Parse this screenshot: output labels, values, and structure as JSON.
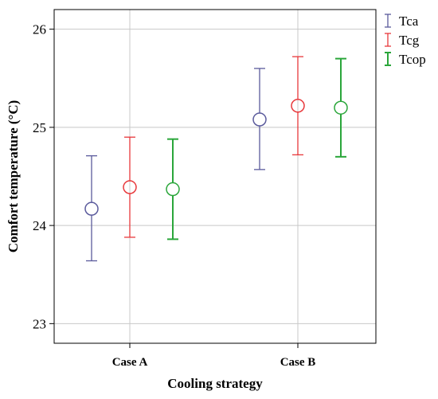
{
  "chart_data": {
    "type": "errorbar",
    "xlabel": "Cooling strategy",
    "ylabel": "Comfort temperature (°C)",
    "ylim": [
      22.8,
      26.2
    ],
    "yticks": [
      23,
      24,
      25,
      26
    ],
    "categories": [
      "Case A",
      "Case B"
    ],
    "grid": true,
    "legend_position": "top-right",
    "series": [
      {
        "name": "Tca",
        "color": "#5a5a9c",
        "mean": [
          24.17,
          25.08
        ],
        "lower": [
          23.64,
          24.57
        ],
        "upper": [
          24.71,
          25.6
        ]
      },
      {
        "name": "Tcg",
        "color": "#e8383b",
        "mean": [
          24.39,
          25.22
        ],
        "lower": [
          23.88,
          24.72
        ],
        "upper": [
          24.9,
          25.72
        ]
      },
      {
        "name": "Tcop",
        "color": "#2aa63a",
        "mean": [
          24.37,
          25.2
        ],
        "lower": [
          23.86,
          24.7
        ],
        "upper": [
          24.88,
          25.7
        ]
      }
    ]
  }
}
